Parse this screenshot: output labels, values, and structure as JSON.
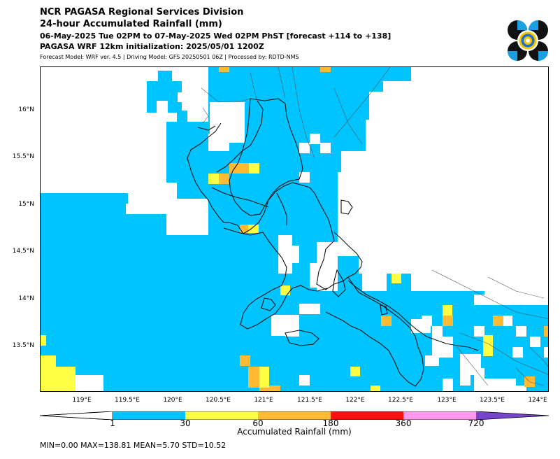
{
  "header": {
    "title": "NCR PAGASA Regional Services Division",
    "subtitle": "24-hour Accumulated Rainfall (mm)",
    "period": "06-May-2025 Tue 02PM to 07-May-2025 Wed 02PM PhST [forecast +114 to +138]",
    "initialization": "PAGASA WRF 12km initialization: 2025/05/01 1200Z",
    "model_info": "Forecast Model: WRF ver. 4.5 | Driving Model: GFS 20250501 06Z | Processed by: RDTD-NMS"
  },
  "map": {
    "lon_range": [
      118.5,
      124.1
    ],
    "lat_range": [
      13.0,
      16.45
    ],
    "lat_labels": [
      "16°N",
      "15.5°N",
      "15°N",
      "14.5°N",
      "14°N",
      "13.5°N"
    ],
    "lat_values": [
      16.0,
      15.5,
      15.0,
      14.5,
      14.0,
      13.5
    ],
    "lon_labels": [
      "119°E",
      "119.5°E",
      "120°E",
      "120.5°E",
      "121°E",
      "121.5°E",
      "122°E",
      "122.5°E",
      "123°E",
      "123.5°E",
      "124°E"
    ],
    "lon_values": [
      119.0,
      119.5,
      120.0,
      120.5,
      121.0,
      121.5,
      122.0,
      122.5,
      123.0,
      123.5,
      124.0
    ],
    "rain_color_1_30": "#00c4ff",
    "rain_color_30_60": "#ffff44",
    "rain_color_60_180": "#ffbb33"
  },
  "colorbar": {
    "ticks": [
      "1",
      "30",
      "60",
      "180",
      "360",
      "720"
    ],
    "colors": [
      "#00c4ff",
      "#ffff44",
      "#ffbb33",
      "#ff0f0f",
      "#ff99ee",
      "#7744cc"
    ],
    "label": "Accumulated Rainfall (mm)"
  },
  "stats": {
    "text": "MIN=0.00   MAX=138.81   MEAN=5.70   STD=10.52"
  },
  "logo": {
    "icon": "pagasa-seal-icon"
  }
}
